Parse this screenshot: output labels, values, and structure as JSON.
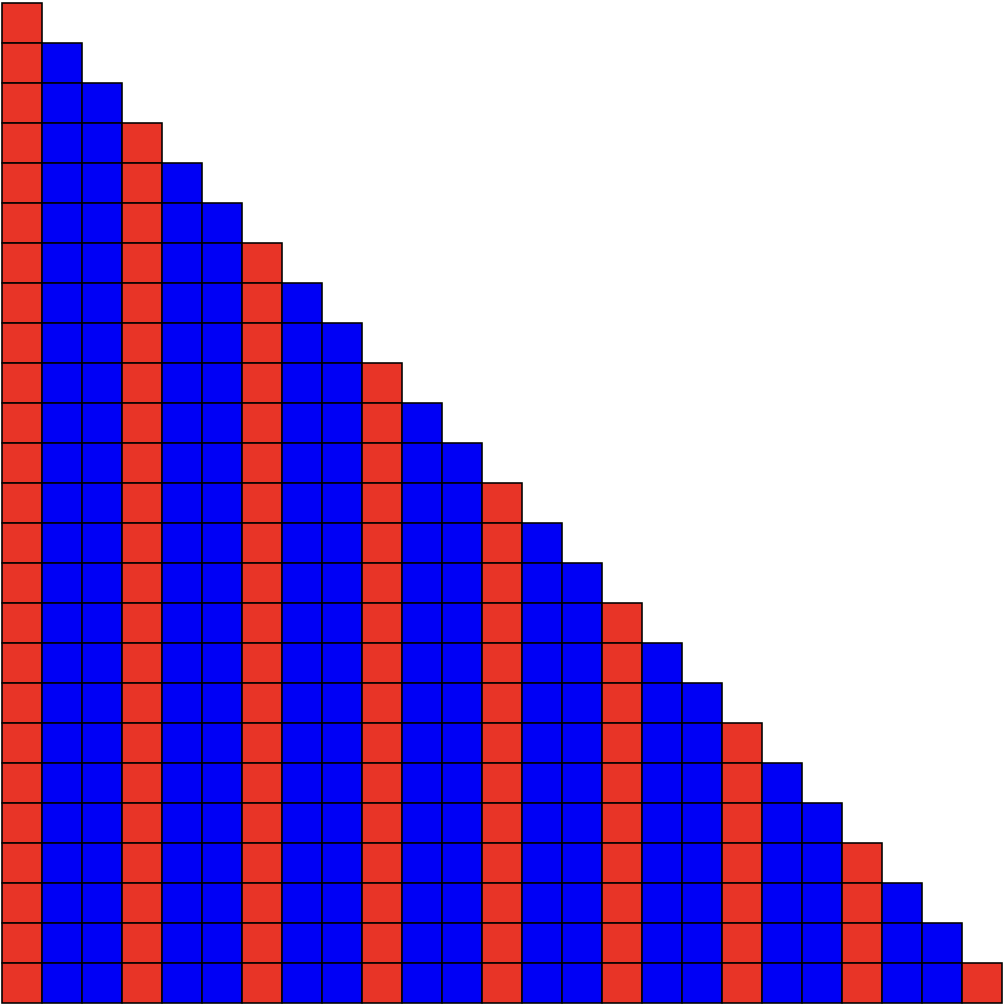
{
  "grid": {
    "rows": 25,
    "pattern": [
      "red",
      "blue",
      "blue"
    ]
  },
  "colors": {
    "red": "#e83427",
    "blue": "#0000f5",
    "background": "#ffffff",
    "border": "#000000"
  }
}
